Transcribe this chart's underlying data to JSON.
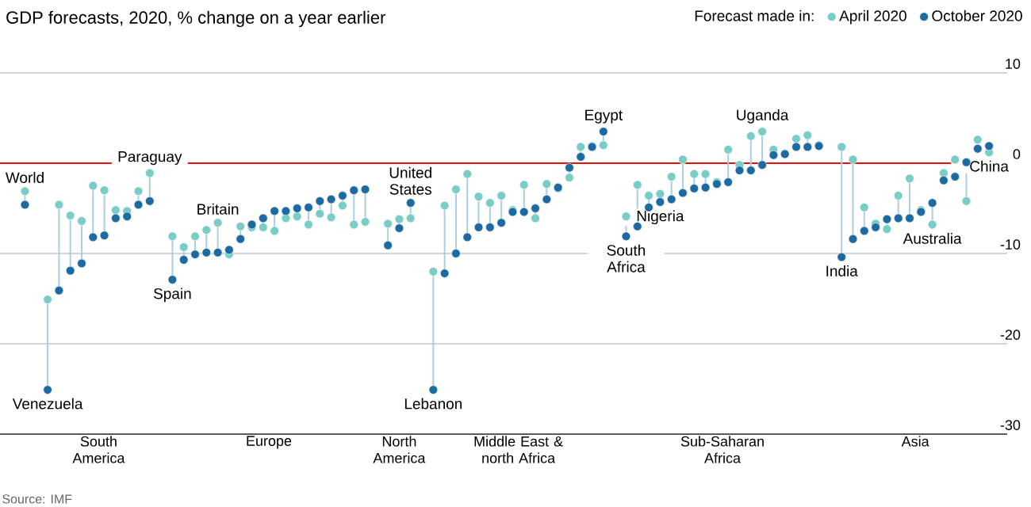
{
  "chart_data": {
    "type": "scatter",
    "title": "GDP forecasts, 2020, % change on a year earlier",
    "legend_title": "Forecast made in:",
    "legend": "top right",
    "grid": "y",
    "categories": [
      "World",
      null,
      "Venezuela",
      null,
      null,
      null,
      null,
      null,
      null,
      null,
      null,
      "Paraguay",
      null,
      "Spain",
      null,
      null,
      null,
      "Britain",
      null,
      null,
      null,
      null,
      null,
      null,
      null,
      null,
      null,
      null,
      null,
      null,
      null,
      null,
      null,
      null,
      "United States",
      null,
      "Lebanon",
      null,
      null,
      null,
      null,
      null,
      null,
      null,
      null,
      null,
      null,
      null,
      null,
      null,
      null,
      "Egypt",
      null,
      "South Africa",
      null,
      null,
      "Nigeria",
      null,
      null,
      null,
      null,
      null,
      null,
      null,
      null,
      "Uganda",
      null,
      null,
      null,
      null,
      null,
      null,
      "India",
      null,
      null,
      null,
      null,
      null,
      null,
      null,
      "Australia",
      null,
      null,
      null,
      null,
      "China"
    ],
    "series": [
      {
        "name": "April 2020",
        "color": "#79cdc6",
        "values": [
          -3.1,
          null,
          -15.1,
          -4.6,
          -5.8,
          -6.4,
          -2.5,
          -3.0,
          -5.2,
          -5.3,
          -3.1,
          -1.1,
          null,
          -8.1,
          -9.3,
          -8.1,
          -7.4,
          -6.6,
          -10.1,
          -7.0,
          -7.1,
          -7.1,
          -7.5,
          -6.1,
          -5.9,
          -6.8,
          -5.6,
          -6.0,
          -4.7,
          -6.8,
          -6.5,
          null,
          -6.7,
          -6.2,
          -6.1,
          null,
          -12.0,
          -4.7,
          -2.9,
          -1.2,
          -3.7,
          -4.4,
          -3.6,
          -5.2,
          -2.4,
          -6.1,
          -2.3,
          -2.8,
          -1.6,
          1.8,
          1.9,
          2.0,
          null,
          -5.9,
          -2.4,
          -3.6,
          -3.4,
          -1.5,
          0.4,
          -1.2,
          -1.2,
          -2.1,
          1.5,
          -0.2,
          3.0,
          3.5,
          1.5,
          1.1,
          2.7,
          3.1,
          2.0,
          null,
          1.8,
          0.4,
          -4.9,
          -6.7,
          -7.3,
          -3.6,
          -1.7,
          -5.2,
          -6.8,
          -1.1,
          0.4,
          -4.2,
          2.6,
          1.2
        ]
      },
      {
        "name": "October 2020",
        "color": "#1d6aa2",
        "values": [
          -4.6,
          null,
          -25.1,
          -14.1,
          -11.9,
          -11.1,
          -8.2,
          -8.0,
          -6.1,
          -5.9,
          -4.6,
          -4.2,
          null,
          -12.9,
          -10.7,
          -10.1,
          -9.9,
          -9.9,
          -9.6,
          -8.4,
          -6.8,
          -6.1,
          -5.3,
          -5.3,
          -5.0,
          -4.9,
          -4.2,
          -4.0,
          -3.6,
          -3.0,
          -2.9,
          null,
          -9.1,
          -7.2,
          -4.4,
          null,
          -25.1,
          -12.2,
          -10.0,
          -8.2,
          -7.1,
          -7.1,
          -6.6,
          -5.4,
          -5.4,
          -5.0,
          -4.0,
          -2.7,
          -0.5,
          0.7,
          1.8,
          3.5,
          null,
          -8.1,
          -7.0,
          -4.9,
          -4.3,
          -4.0,
          -3.3,
          -2.8,
          -2.7,
          -2.3,
          -2.1,
          -0.8,
          -0.8,
          -0.2,
          0.9,
          1.0,
          1.8,
          1.8,
          1.9,
          null,
          -10.4,
          -8.4,
          -7.5,
          -7.1,
          -6.2,
          -6.1,
          -6.1,
          -5.4,
          -4.4,
          -1.9,
          -1.5,
          0.1,
          1.6,
          1.9
        ]
      }
    ],
    "ylim": [
      -30,
      10
    ],
    "yticks": [
      -30,
      -20,
      -10,
      0,
      10
    ],
    "ref_lines": [
      {
        "axis": "y",
        "value": 0,
        "color": "#e3120b"
      }
    ],
    "annotations": [
      "South America",
      "Europe",
      "North America",
      "Middle East & north Africa",
      "Sub-Saharan Africa",
      "Asia",
      "Source: IMF"
    ]
  }
}
